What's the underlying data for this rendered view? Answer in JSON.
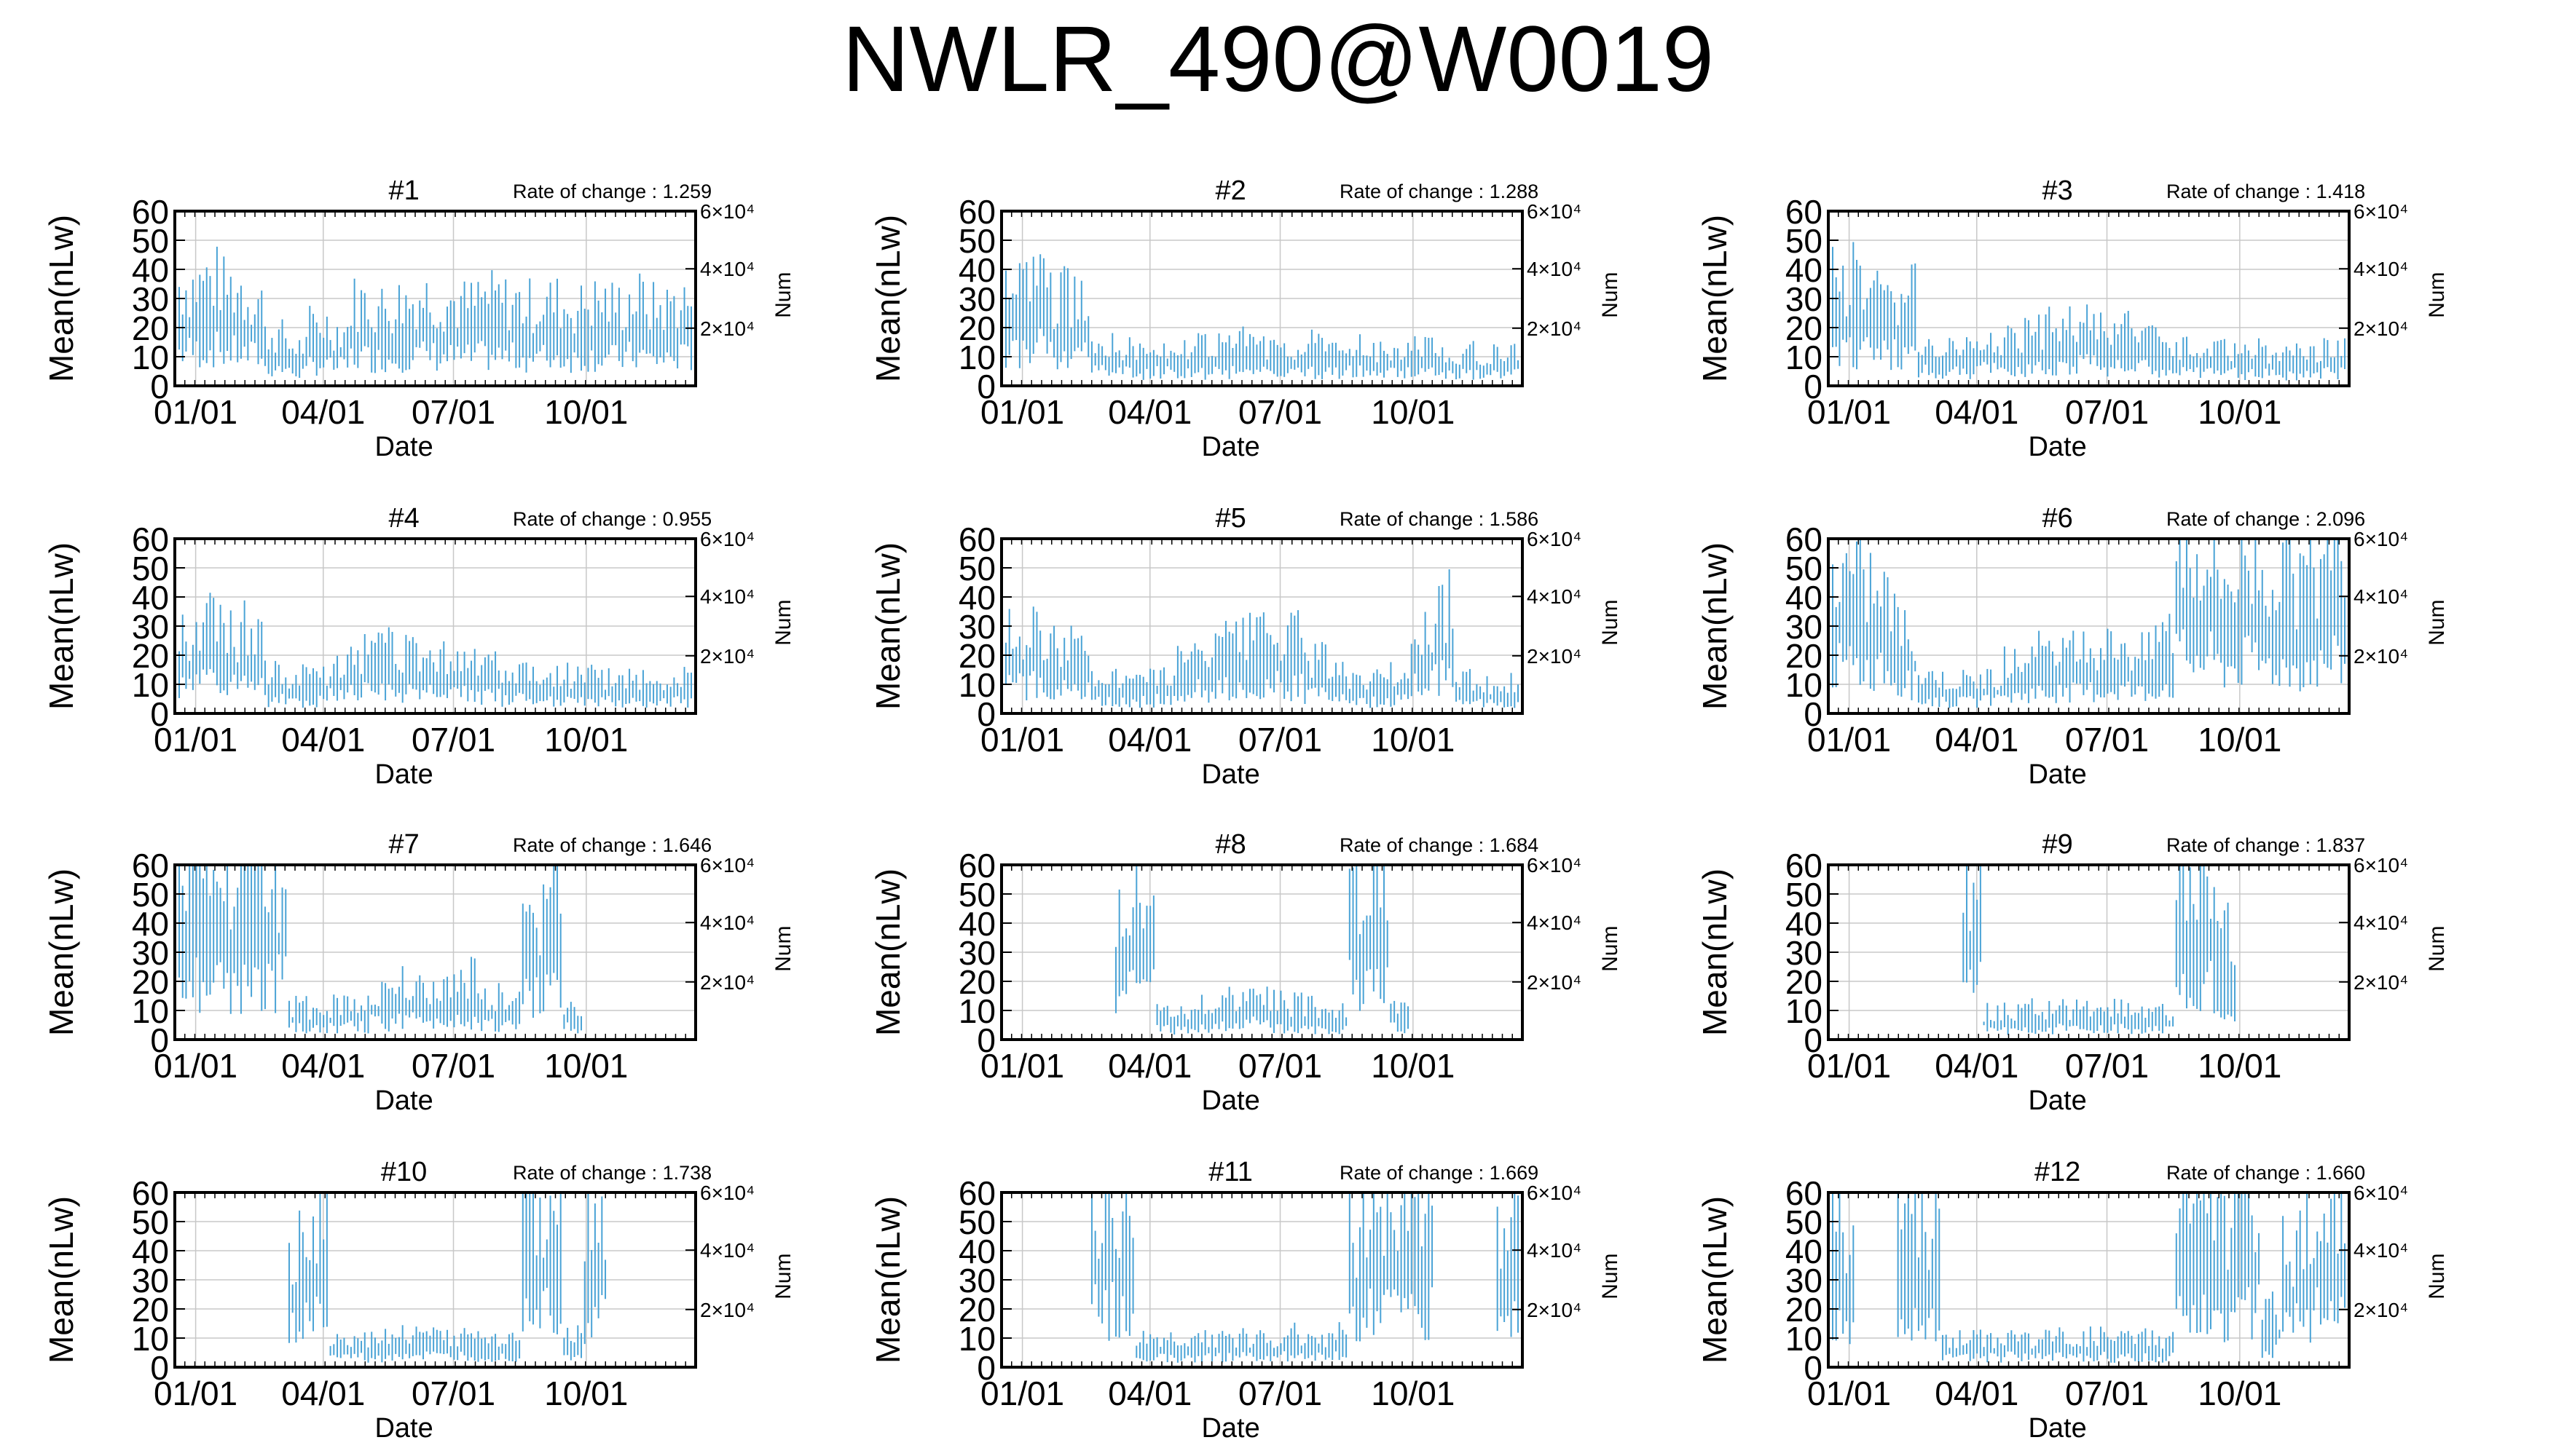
{
  "title": "NWLR_490@W0019",
  "style": {
    "series_color": "#4aa3d6",
    "grid_color": "#c8c8c8",
    "axis_color": "#000000"
  },
  "chart_data": [
    {
      "type": "line",
      "title": "#1",
      "annotation": "Rate of change : 1.259",
      "xlabel": "Date",
      "ylabel": "Mean(nLw)",
      "y2label": "Num",
      "xticks": [
        "01/01",
        "04/01",
        "07/01",
        "10/01"
      ],
      "yticks": [
        "0",
        "10",
        "20",
        "30",
        "40",
        "50",
        "60"
      ],
      "y2ticks": [
        "2×10⁴",
        "4×10⁴",
        "6×10⁴"
      ],
      "ylim": [
        0,
        60
      ],
      "grid": true,
      "profile": [
        36,
        38,
        35,
        32,
        18,
        14,
        22,
        20,
        30,
        28,
        30,
        32,
        30,
        29,
        31,
        30,
        29,
        30,
        28,
        30,
        29,
        31,
        28,
        30
      ]
    },
    {
      "type": "line",
      "title": "#2",
      "annotation": "Rate of change : 1.288",
      "xlabel": "Date",
      "ylabel": "Mean(nLw)",
      "y2label": "Num",
      "xticks": [
        "01/01",
        "04/01",
        "07/01",
        "10/01"
      ],
      "yticks": [
        "0",
        "10",
        "20",
        "30",
        "40",
        "50",
        "60"
      ],
      "y2ticks": [
        "2×10⁴",
        "4×10⁴",
        "6×10⁴"
      ],
      "ylim": [
        0,
        60
      ],
      "grid": true,
      "profile": [
        36,
        40,
        32,
        30,
        16,
        14,
        13,
        14,
        13,
        14,
        15,
        16,
        15,
        14,
        15,
        13,
        14,
        12,
        13,
        14,
        12,
        12,
        11,
        12
      ]
    },
    {
      "type": "line",
      "title": "#3",
      "annotation": "Rate of change : 1.418",
      "xlabel": "Date",
      "ylabel": "Mean(nLw)",
      "y2label": "Num",
      "xticks": [
        "01/01",
        "04/01",
        "07/01",
        "10/01"
      ],
      "yticks": [
        "0",
        "10",
        "20",
        "30",
        "40",
        "50",
        "60"
      ],
      "y2ticks": [
        "2×10⁴",
        "4×10⁴",
        "6×10⁴"
      ],
      "ylim": [
        0,
        60
      ],
      "grid": true,
      "profile": [
        38,
        36,
        34,
        33,
        15,
        14,
        15,
        17,
        18,
        20,
        22,
        22,
        21,
        20,
        18,
        16,
        14,
        13,
        14,
        13,
        12,
        12,
        12,
        13
      ]
    },
    {
      "type": "line",
      "title": "#4",
      "annotation": "Rate of change : 0.955",
      "xlabel": "Date",
      "ylabel": "Mean(nLw)",
      "y2label": "Num",
      "xticks": [
        "01/01",
        "04/01",
        "07/01",
        "10/01"
      ],
      "yticks": [
        "0",
        "10",
        "20",
        "30",
        "40",
        "50",
        "60"
      ],
      "y2ticks": [
        "2×10⁴",
        "4×10⁴",
        "6×10⁴"
      ],
      "ylim": [
        0,
        60
      ],
      "grid": true,
      "profile": [
        30,
        32,
        28,
        30,
        14,
        13,
        14,
        18,
        22,
        24,
        22,
        20,
        21,
        20,
        18,
        15,
        14,
        13,
        14,
        13,
        12,
        12,
        12,
        13
      ]
    },
    {
      "type": "line",
      "title": "#5",
      "annotation": "Rate of change : 1.586",
      "xlabel": "Date",
      "ylabel": "Mean(nLw)",
      "y2label": "Num",
      "xticks": [
        "01/01",
        "04/01",
        "07/01",
        "10/01"
      ],
      "yticks": [
        "0",
        "10",
        "20",
        "30",
        "40",
        "50",
        "60"
      ],
      "y2ticks": [
        "2×10⁴",
        "4×10⁴",
        "6×10⁴"
      ],
      "ylim": [
        0,
        60
      ],
      "grid": true,
      "profile": [
        28,
        30,
        26,
        24,
        13,
        12,
        12,
        14,
        20,
        24,
        26,
        28,
        30,
        28,
        20,
        14,
        12,
        12,
        14,
        30,
        40,
        12,
        10,
        11
      ]
    },
    {
      "type": "line",
      "title": "#6",
      "annotation": "Rate of change : 2.096",
      "xlabel": "Date",
      "ylabel": "Mean(nLw)",
      "y2label": "Num",
      "xticks": [
        "01/01",
        "04/01",
        "07/01",
        "10/01"
      ],
      "yticks": [
        "0",
        "10",
        "20",
        "30",
        "40",
        "50",
        "60"
      ],
      "y2ticks": [
        "2×10⁴",
        "4×10⁴",
        "6×10⁴"
      ],
      "ylim": [
        0,
        60
      ],
      "grid": true,
      "profile": [
        50,
        48,
        42,
        30,
        14,
        12,
        12,
        13,
        18,
        22,
        20,
        22,
        24,
        26,
        22,
        30,
        60,
        58,
        50,
        55,
        52,
        48,
        50,
        55
      ]
    },
    {
      "type": "line",
      "title": "#7",
      "annotation": "Rate of change : 1.646",
      "xlabel": "Date",
      "ylabel": "Mean(nLw)",
      "y2label": "Num",
      "xticks": [
        "01/01",
        "04/01",
        "07/01",
        "10/01"
      ],
      "yticks": [
        "0",
        "10",
        "20",
        "30",
        "40",
        "50",
        "60"
      ],
      "y2ticks": [
        "2×10⁴",
        "4×10⁴",
        "6×10⁴"
      ],
      "ylim": [
        0,
        60
      ],
      "grid": true,
      "profile": [
        60,
        55,
        50,
        58,
        60,
        12,
        10,
        12,
        14,
        18,
        20,
        18,
        20,
        22,
        16,
        14,
        45,
        55,
        12,
        0,
        0,
        0,
        0,
        0
      ]
    },
    {
      "type": "line",
      "title": "#8",
      "annotation": "Rate of change : 1.684",
      "xlabel": "Date",
      "ylabel": "Mean(nLw)",
      "y2label": "Num",
      "xticks": [
        "01/01",
        "04/01",
        "07/01",
        "10/01"
      ],
      "yticks": [
        "0",
        "10",
        "20",
        "30",
        "40",
        "50",
        "60"
      ],
      "y2ticks": [
        "2×10⁴",
        "4×10⁴",
        "6×10⁴"
      ],
      "ylim": [
        0,
        60
      ],
      "grid": true,
      "profile": [
        0,
        0,
        0,
        0,
        0,
        50,
        60,
        11,
        10,
        12,
        14,
        16,
        14,
        13,
        12,
        10,
        55,
        60,
        12,
        0,
        0,
        0,
        0,
        0
      ]
    },
    {
      "type": "line",
      "title": "#9",
      "annotation": "Rate of change : 1.837",
      "xlabel": "Date",
      "ylabel": "Mean(nLw)",
      "y2label": "Num",
      "xticks": [
        "01/01",
        "04/01",
        "07/01",
        "10/01"
      ],
      "yticks": [
        "0",
        "10",
        "20",
        "30",
        "40",
        "50",
        "60"
      ],
      "y2ticks": [
        "2×10⁴",
        "4×10⁴",
        "6×10⁴"
      ],
      "ylim": [
        0,
        60
      ],
      "grid": true,
      "profile": [
        0,
        0,
        0,
        0,
        0,
        0,
        55,
        10,
        10,
        11,
        12,
        11,
        10,
        11,
        10,
        10,
        55,
        60,
        40,
        0,
        0,
        0,
        0,
        0
      ]
    },
    {
      "type": "line",
      "title": "#10",
      "annotation": "Rate of change : 1.738",
      "xlabel": "Date",
      "ylabel": "Mean(nLw)",
      "y2label": "Num",
      "xticks": [
        "01/01",
        "04/01",
        "07/01",
        "10/01"
      ],
      "yticks": [
        "0",
        "10",
        "20",
        "30",
        "40",
        "50",
        "60"
      ],
      "y2ticks": [
        "2×10⁴",
        "4×10⁴",
        "6×10⁴"
      ],
      "ylim": [
        0,
        60
      ],
      "grid": true,
      "profile": [
        0,
        0,
        0,
        0,
        0,
        45,
        50,
        10,
        10,
        11,
        12,
        11,
        10,
        11,
        10,
        10,
        60,
        60,
        12,
        50,
        0,
        0,
        0,
        0
      ]
    },
    {
      "type": "line",
      "title": "#11",
      "annotation": "Rate of change : 1.669",
      "xlabel": "Date",
      "ylabel": "Mean(nLw)",
      "y2label": "Num",
      "xticks": [
        "01/01",
        "04/01",
        "07/01",
        "10/01"
      ],
      "yticks": [
        "0",
        "10",
        "20",
        "30",
        "40",
        "50",
        "60"
      ],
      "y2ticks": [
        "2×10⁴",
        "4×10⁴",
        "6×10⁴"
      ],
      "ylim": [
        0,
        60
      ],
      "grid": true,
      "profile": [
        0,
        0,
        0,
        0,
        60,
        50,
        10,
        10,
        10,
        11,
        10,
        11,
        10,
        12,
        11,
        12,
        50,
        60,
        60,
        55,
        0,
        0,
        0,
        55
      ]
    },
    {
      "type": "line",
      "title": "#12",
      "annotation": "Rate of change : 1.660",
      "xlabel": "Date",
      "ylabel": "Mean(nLw)",
      "y2label": "Num",
      "xticks": [
        "01/01",
        "04/01",
        "07/01",
        "10/01"
      ],
      "yticks": [
        "0",
        "10",
        "20",
        "30",
        "40",
        "50",
        "60"
      ],
      "y2ticks": [
        "2×10⁴",
        "4×10⁴",
        "6×10⁴"
      ],
      "ylim": [
        0,
        60
      ],
      "grid": true,
      "profile": [
        50,
        0,
        0,
        60,
        55,
        10,
        10,
        10,
        11,
        10,
        11,
        10,
        11,
        10,
        11,
        10,
        60,
        55,
        50,
        60,
        20,
        45,
        55,
        50
      ]
    }
  ]
}
